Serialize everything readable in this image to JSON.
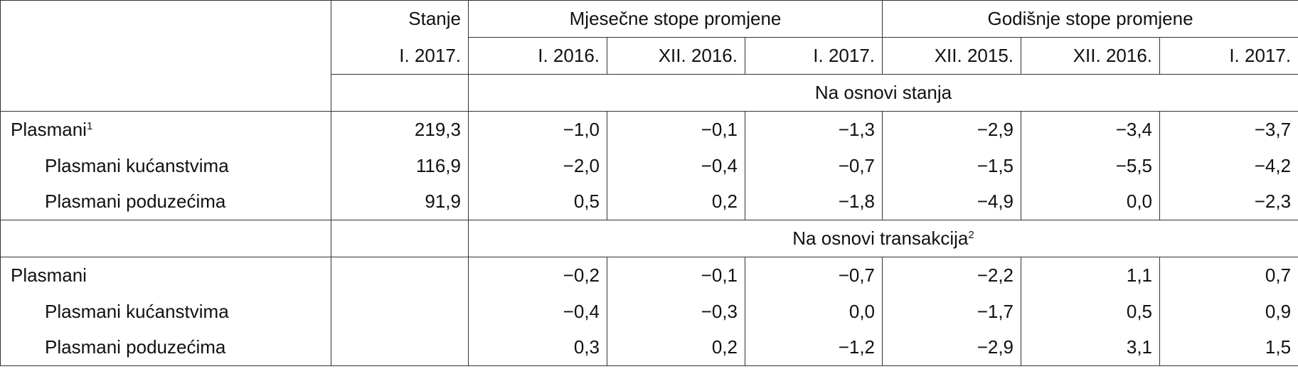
{
  "header": {
    "stanje": "Stanje",
    "stanje_date": "I. 2017.",
    "monthly": "Mjesečne stope promjene",
    "annual": "Godišnje stope promjene",
    "dates": [
      "I. 2016.",
      "XII. 2016.",
      "I. 2017.",
      "XII. 2015.",
      "XII. 2016.",
      "I. 2017."
    ]
  },
  "sections": [
    {
      "title": "Na osnovi stanja",
      "rows": [
        {
          "label": "Plasmani",
          "note": "1",
          "stanje": "219,3",
          "values": [
            "−1,0",
            "−0,1",
            "−1,3",
            "−2,9",
            "−3,4",
            "−3,7"
          ]
        },
        {
          "label": "Plasmani kućanstvima",
          "stanje": "116,9",
          "values": [
            "−2,0",
            "−0,4",
            "−0,7",
            "−1,5",
            "−5,5",
            "−4,2"
          ]
        },
        {
          "label": "Plasmani poduzećima",
          "stanje": "91,9",
          "values": [
            "0,5",
            "0,2",
            "−1,8",
            "−4,9",
            "0,0",
            "−2,3"
          ]
        }
      ]
    },
    {
      "title": "Na osnovi transakcija",
      "title_note": "2",
      "rows": [
        {
          "label": "Plasmani",
          "values": [
            "−0,2",
            "−0,1",
            "−0,7",
            "−2,2",
            "1,1",
            "0,7"
          ]
        },
        {
          "label": "Plasmani kućanstvima",
          "values": [
            "−0,4",
            "−0,3",
            "0,0",
            "−1,7",
            "0,5",
            "0,9"
          ]
        },
        {
          "label": "Plasmani poduzećima",
          "values": [
            "0,3",
            "0,2",
            "−1,2",
            "−2,9",
            "3,1",
            "1,5"
          ]
        }
      ]
    }
  ]
}
